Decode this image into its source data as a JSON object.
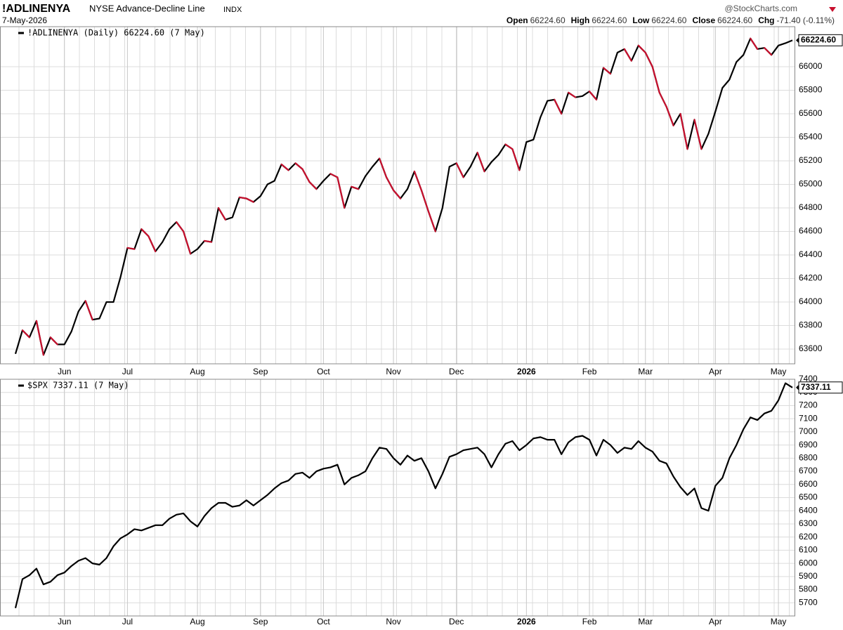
{
  "header": {
    "symbol": "!ADLINENYA",
    "name": "NYSE Advance-Decline Line",
    "exchange": "INDX",
    "date": "7-May-2026",
    "source": "@StockCharts.com",
    "quote": [
      {
        "label": "Open",
        "value": "66224.60"
      },
      {
        "label": "High",
        "value": "66224.60"
      },
      {
        "label": "Low",
        "value": "66224.60"
      },
      {
        "label": "Close",
        "value": "66224.60"
      },
      {
        "label": "Chg",
        "value": "-71.40 (-0.11%)"
      }
    ]
  },
  "chart_data": [
    {
      "type": "line",
      "categories": [
        null,
        null,
        null,
        null,
        null,
        null,
        null,
        "Jun",
        null,
        null,
        null,
        null,
        null,
        null,
        null,
        null,
        "Jul",
        null,
        null,
        null,
        null,
        null,
        null,
        null,
        null,
        null,
        "Aug",
        null,
        null,
        null,
        null,
        null,
        null,
        null,
        null,
        "Sep",
        null,
        null,
        null,
        null,
        null,
        null,
        null,
        null,
        "Oct",
        null,
        null,
        null,
        null,
        null,
        null,
        null,
        null,
        null,
        "Nov",
        null,
        null,
        null,
        null,
        null,
        null,
        null,
        null,
        "Dec",
        null,
        null,
        null,
        null,
        null,
        null,
        null,
        null,
        null,
        "2026",
        null,
        null,
        null,
        null,
        null,
        null,
        null,
        null,
        "Feb",
        null,
        null,
        null,
        null,
        null,
        null,
        null,
        "Mar",
        null,
        null,
        null,
        null,
        null,
        null,
        null,
        null,
        null,
        "Apr",
        null,
        null,
        null,
        null,
        null,
        null,
        null,
        null,
        "May",
        null,
        null
      ],
      "series": [
        {
          "name": "!ADLINENYA (Daily) 66224.60 (7 May)",
          "color": "#000000",
          "down_color": "#c8102e",
          "last_value_label": "66224.60",
          "values": [
            63560,
            63760,
            63700,
            63840,
            63550,
            63700,
            63640,
            63640,
            63750,
            63920,
            64010,
            63850,
            63860,
            64000,
            64000,
            64210,
            64460,
            64450,
            64620,
            64560,
            64430,
            64510,
            64620,
            64680,
            64600,
            64410,
            64450,
            64520,
            64510,
            64800,
            64700,
            64720,
            64890,
            64880,
            64850,
            64900,
            65000,
            65030,
            65170,
            65120,
            65180,
            65130,
            65020,
            64960,
            65030,
            65090,
            65060,
            64800,
            64980,
            64960,
            65070,
            65150,
            65220,
            65060,
            64950,
            64880,
            64960,
            65110,
            64950,
            64770,
            64600,
            64800,
            65150,
            65180,
            65060,
            65150,
            65270,
            65110,
            65190,
            65250,
            65340,
            65300,
            65120,
            65360,
            65380,
            65570,
            65710,
            65720,
            65600,
            65780,
            65740,
            65750,
            65790,
            65720,
            65990,
            65940,
            66120,
            66150,
            66050,
            66180,
            66120,
            66000,
            65780,
            65660,
            65500,
            65600,
            65300,
            65550,
            65300,
            65430,
            65620,
            65820,
            65890,
            66040,
            66100,
            66240,
            66150,
            66160,
            66100,
            66180,
            66200,
            66224.6
          ]
        }
      ],
      "ylim": [
        63475,
        66340
      ],
      "yticks": [
        63600,
        63800,
        64000,
        64200,
        64400,
        64600,
        64800,
        65000,
        65200,
        65400,
        65600,
        65800,
        66000
      ],
      "grid": true
    },
    {
      "type": "line",
      "categories": [
        null,
        null,
        null,
        null,
        null,
        null,
        null,
        "Jun",
        null,
        null,
        null,
        null,
        null,
        null,
        null,
        null,
        "Jul",
        null,
        null,
        null,
        null,
        null,
        null,
        null,
        null,
        null,
        "Aug",
        null,
        null,
        null,
        null,
        null,
        null,
        null,
        null,
        "Sep",
        null,
        null,
        null,
        null,
        null,
        null,
        null,
        null,
        "Oct",
        null,
        null,
        null,
        null,
        null,
        null,
        null,
        null,
        null,
        "Nov",
        null,
        null,
        null,
        null,
        null,
        null,
        null,
        null,
        "Dec",
        null,
        null,
        null,
        null,
        null,
        null,
        null,
        null,
        null,
        "2026",
        null,
        null,
        null,
        null,
        null,
        null,
        null,
        null,
        "Feb",
        null,
        null,
        null,
        null,
        null,
        null,
        null,
        "Mar",
        null,
        null,
        null,
        null,
        null,
        null,
        null,
        null,
        null,
        "Apr",
        null,
        null,
        null,
        null,
        null,
        null,
        null,
        null,
        "May",
        null,
        null
      ],
      "series": [
        {
          "name": "$SPX 7337.11 (7 May)",
          "color": "#000000",
          "last_value_label": "7337.11",
          "values": [
            5660,
            5880,
            5910,
            5960,
            5840,
            5860,
            5910,
            5930,
            5980,
            6020,
            6040,
            6000,
            5990,
            6040,
            6130,
            6190,
            6220,
            6260,
            6250,
            6270,
            6290,
            6290,
            6340,
            6370,
            6380,
            6320,
            6280,
            6360,
            6420,
            6460,
            6460,
            6430,
            6440,
            6480,
            6440,
            6480,
            6520,
            6570,
            6610,
            6630,
            6680,
            6690,
            6650,
            6700,
            6720,
            6730,
            6750,
            6600,
            6650,
            6670,
            6700,
            6800,
            6880,
            6870,
            6800,
            6750,
            6820,
            6780,
            6800,
            6700,
            6570,
            6680,
            6810,
            6830,
            6860,
            6870,
            6880,
            6830,
            6730,
            6830,
            6910,
            6930,
            6860,
            6900,
            6950,
            6960,
            6940,
            6940,
            6830,
            6920,
            6960,
            6970,
            6940,
            6820,
            6940,
            6900,
            6840,
            6880,
            6870,
            6930,
            6880,
            6850,
            6780,
            6760,
            6660,
            6580,
            6520,
            6570,
            6420,
            6400,
            6590,
            6650,
            6800,
            6900,
            7020,
            7110,
            7090,
            7140,
            7160,
            7240,
            7370,
            7337.11
          ]
        }
      ],
      "ylim": [
        5600,
        7400
      ],
      "yticks": [
        5700,
        5800,
        5900,
        6000,
        6100,
        6200,
        6300,
        6400,
        6500,
        6600,
        6700,
        6800,
        6900,
        7000,
        7100,
        7200,
        7300,
        7400
      ],
      "grid": true
    }
  ]
}
